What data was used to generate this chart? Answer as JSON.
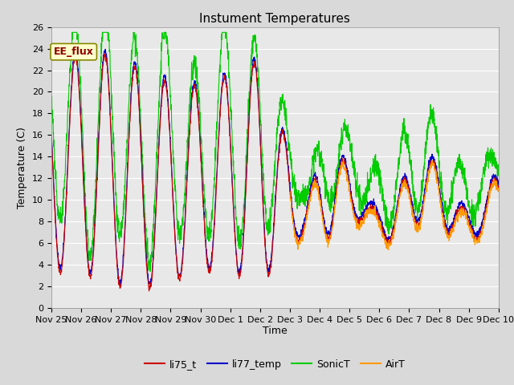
{
  "title": "Instument Temperatures",
  "xlabel": "Time",
  "ylabel": "Temperature (C)",
  "ylim": [
    0,
    26
  ],
  "yticks": [
    0,
    2,
    4,
    6,
    8,
    10,
    12,
    14,
    16,
    18,
    20,
    22,
    24,
    26
  ],
  "xtick_labels": [
    "Nov 25",
    "Nov 26",
    "Nov 27",
    "Nov 28",
    "Nov 29",
    "Nov 30",
    "Dec 1",
    "Dec 2",
    "Dec 3",
    "Dec 4",
    "Dec 5",
    "Dec 6",
    "Dec 7",
    "Dec 8",
    "Dec 9",
    "Dec 10"
  ],
  "line_colors": {
    "li75_t": "#cc0000",
    "li77_temp": "#0000cc",
    "SonicT": "#00cc00",
    "AirT": "#ff9900"
  },
  "legend_labels": [
    "li75_t",
    "li77_temp",
    "SonicT",
    "AirT"
  ],
  "annotation_text": "EE_flux",
  "annotation_bg": "#ffffcc",
  "annotation_border": "#888800",
  "plot_bg": "#e8e8e8",
  "grid_color": "#ffffff",
  "title_fontsize": 11,
  "axis_fontsize": 9,
  "tick_fontsize": 8,
  "legend_fontsize": 9,
  "figsize": [
    6.4,
    4.8
  ],
  "dpi": 100
}
